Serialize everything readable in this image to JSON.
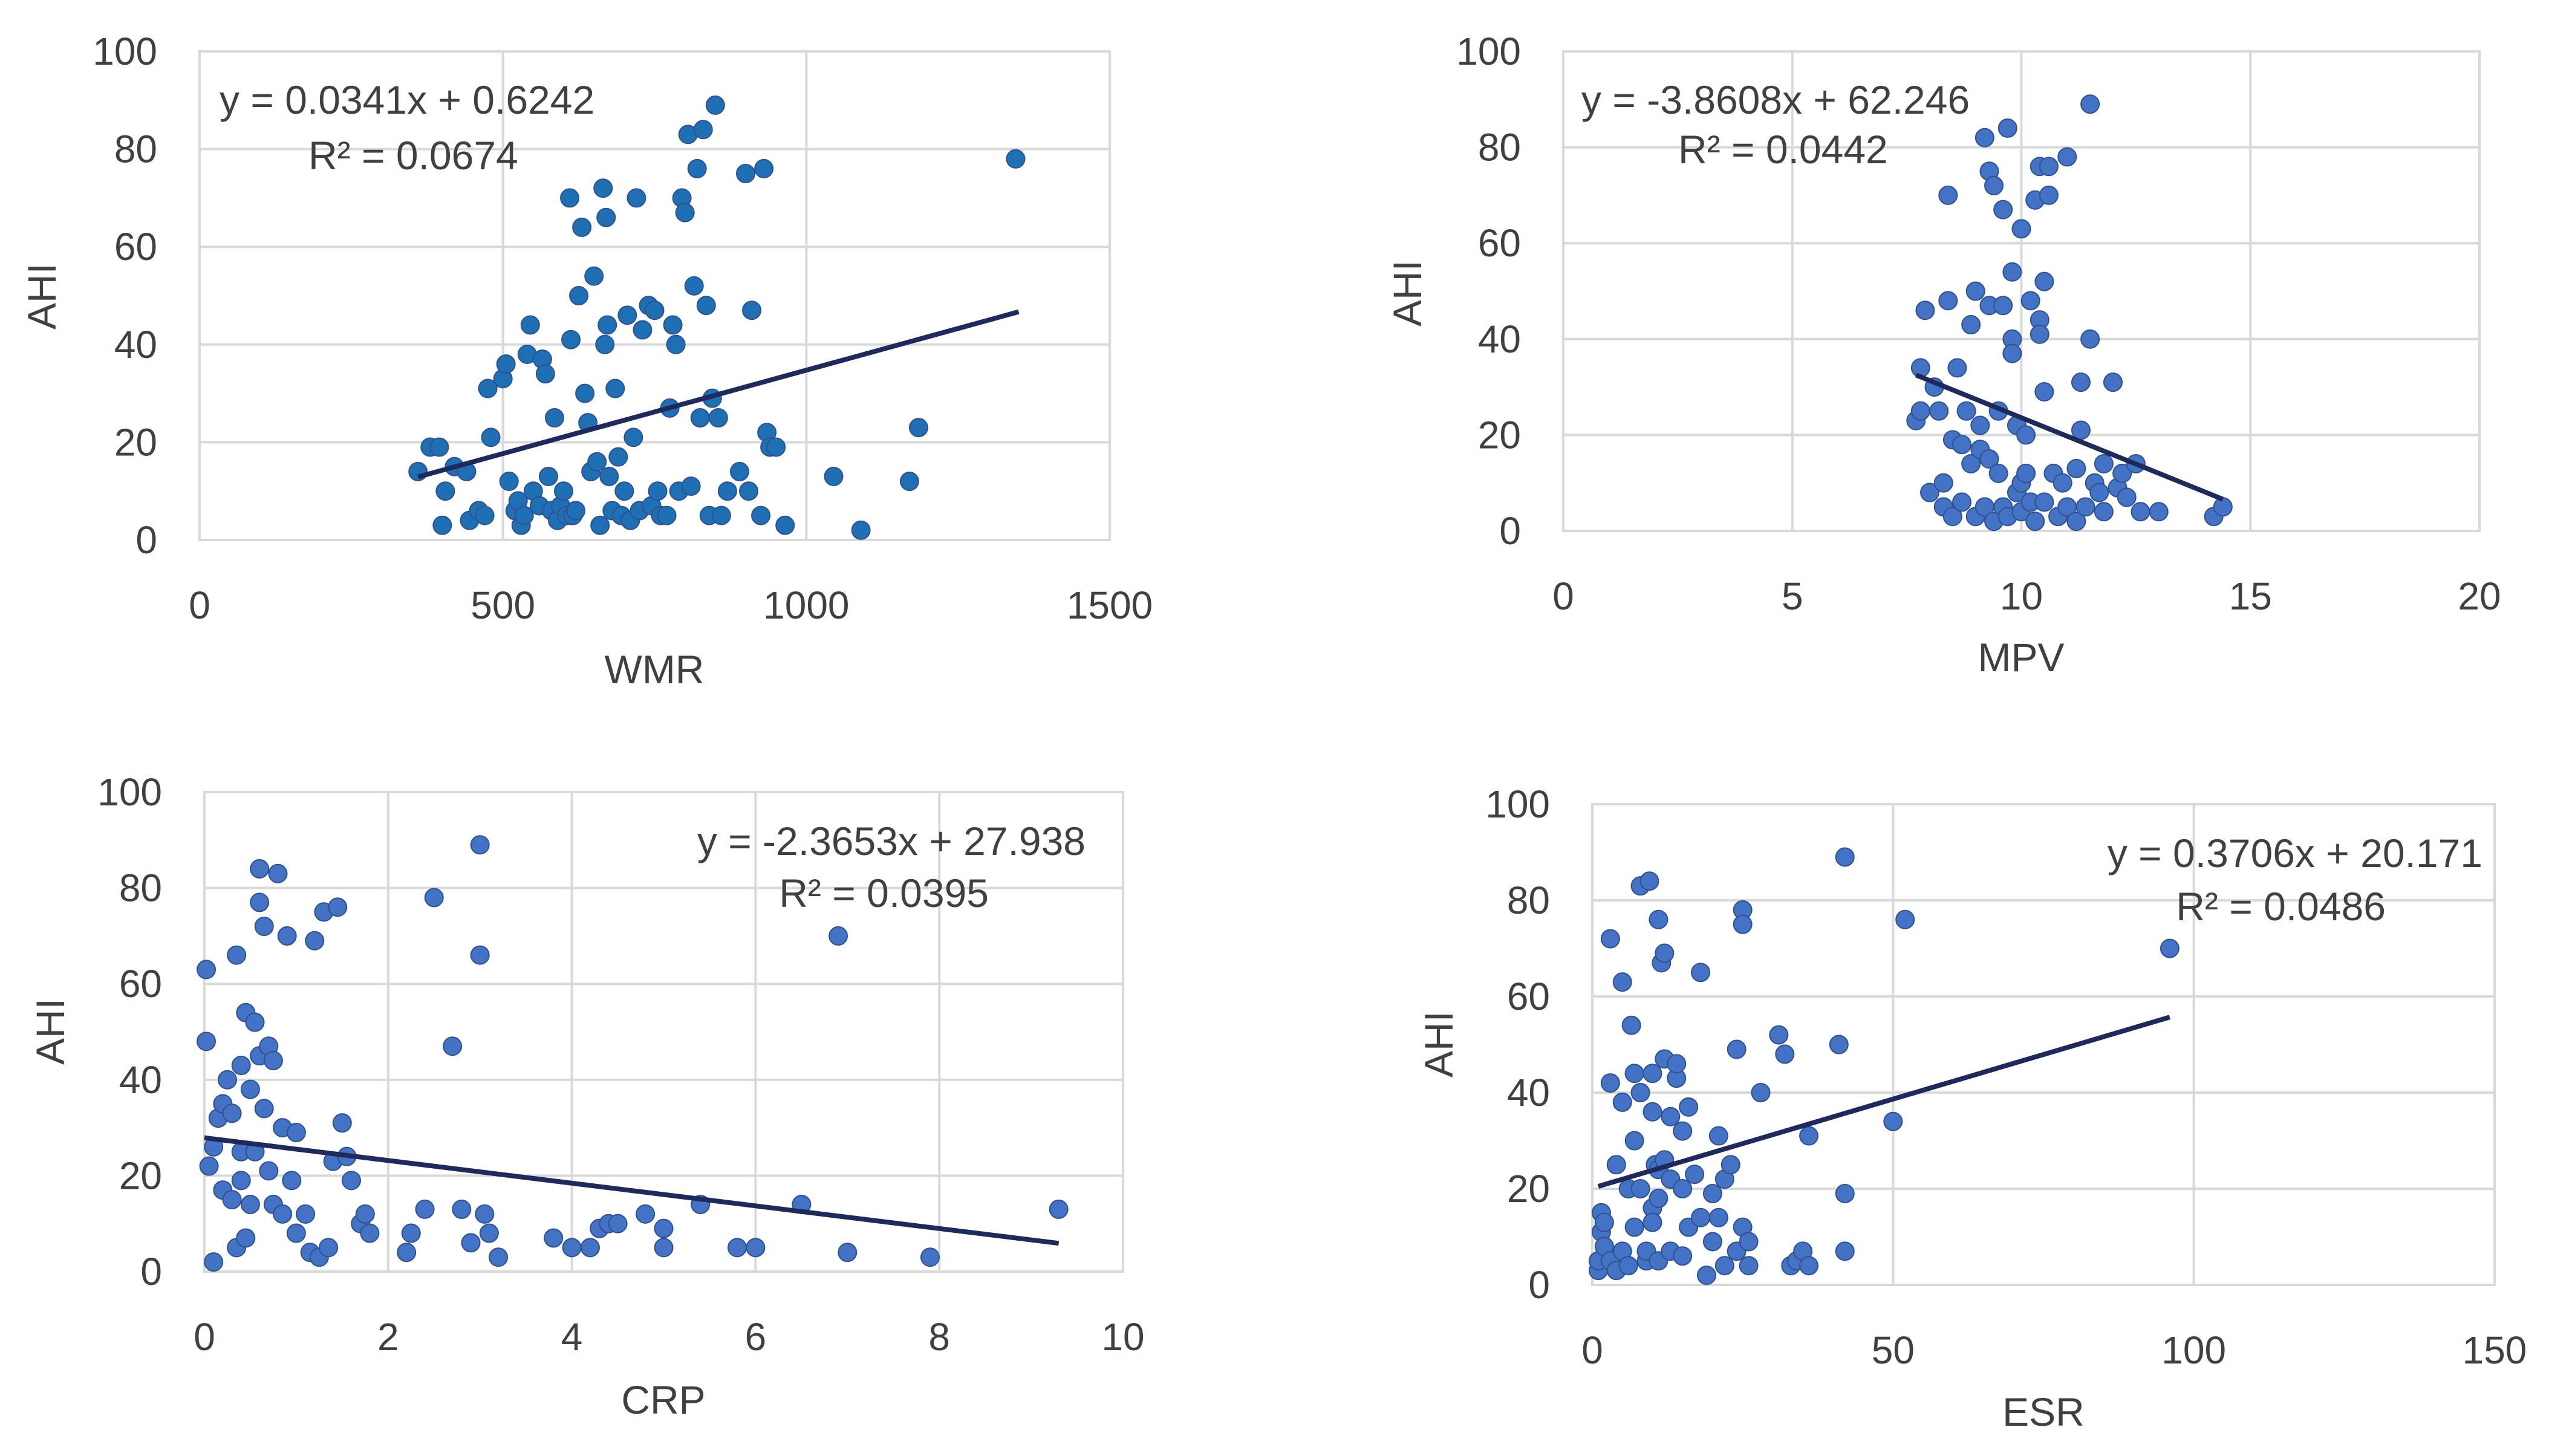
{
  "chart_data": [
    {
      "type": "scatter",
      "xlabel": "WMR",
      "ylabel": "AHI",
      "xlim": [
        0,
        1500
      ],
      "ylim": [
        0,
        100
      ],
      "xticks": [
        "0",
        "500",
        "1000",
        "1500"
      ],
      "yticks": [
        "0",
        "20",
        "40",
        "60",
        "80",
        "100"
      ],
      "grid": true,
      "point_color": "#1f6fb5",
      "equation": "y = 0.0341x + 0.6242",
      "r_squared": "R² = 0.0674",
      "trendline": {
        "x": [
          360,
          1350
        ],
        "y": [
          12.9,
          46.7
        ]
      },
      "points": [
        [
          360,
          14
        ],
        [
          380,
          19
        ],
        [
          395,
          19
        ],
        [
          400,
          3
        ],
        [
          405,
          10
        ],
        [
          420,
          15
        ],
        [
          440,
          14
        ],
        [
          445,
          4
        ],
        [
          460,
          6
        ],
        [
          470,
          5
        ],
        [
          475,
          31
        ],
        [
          480,
          21
        ],
        [
          500,
          33
        ],
        [
          505,
          36
        ],
        [
          510,
          12
        ],
        [
          520,
          6
        ],
        [
          525,
          8
        ],
        [
          530,
          3
        ],
        [
          535,
          5
        ],
        [
          540,
          38
        ],
        [
          545,
          44
        ],
        [
          550,
          10
        ],
        [
          560,
          7
        ],
        [
          565,
          37
        ],
        [
          570,
          34
        ],
        [
          575,
          13
        ],
        [
          580,
          6
        ],
        [
          585,
          25
        ],
        [
          590,
          4
        ],
        [
          595,
          7
        ],
        [
          600,
          10
        ],
        [
          605,
          5
        ],
        [
          610,
          70
        ],
        [
          612,
          41
        ],
        [
          615,
          5
        ],
        [
          620,
          6
        ],
        [
          625,
          50
        ],
        [
          630,
          64
        ],
        [
          635,
          30
        ],
        [
          640,
          24
        ],
        [
          645,
          14
        ],
        [
          650,
          54
        ],
        [
          655,
          16
        ],
        [
          660,
          3
        ],
        [
          665,
          72
        ],
        [
          668,
          40
        ],
        [
          670,
          66
        ],
        [
          672,
          44
        ],
        [
          675,
          13
        ],
        [
          680,
          6
        ],
        [
          685,
          31
        ],
        [
          690,
          17
        ],
        [
          695,
          5
        ],
        [
          700,
          10
        ],
        [
          705,
          46
        ],
        [
          710,
          4
        ],
        [
          715,
          21
        ],
        [
          720,
          70
        ],
        [
          725,
          6
        ],
        [
          730,
          43
        ],
        [
          740,
          48
        ],
        [
          745,
          7
        ],
        [
          750,
          47
        ],
        [
          755,
          10
        ],
        [
          760,
          5
        ],
        [
          770,
          5
        ],
        [
          775,
          27
        ],
        [
          780,
          44
        ],
        [
          785,
          40
        ],
        [
          790,
          10
        ],
        [
          795,
          70
        ],
        [
          800,
          67
        ],
        [
          805,
          83
        ],
        [
          810,
          11
        ],
        [
          815,
          52
        ],
        [
          820,
          76
        ],
        [
          825,
          25
        ],
        [
          830,
          84
        ],
        [
          835,
          48
        ],
        [
          840,
          5
        ],
        [
          845,
          29
        ],
        [
          850,
          89
        ],
        [
          855,
          25
        ],
        [
          860,
          5
        ],
        [
          870,
          10
        ],
        [
          890,
          14
        ],
        [
          900,
          75
        ],
        [
          905,
          10
        ],
        [
          910,
          47
        ],
        [
          925,
          5
        ],
        [
          930,
          76
        ],
        [
          935,
          22
        ],
        [
          940,
          19
        ],
        [
          950,
          19
        ],
        [
          965,
          3
        ],
        [
          1045,
          13
        ],
        [
          1090,
          2
        ],
        [
          1170,
          12
        ],
        [
          1185,
          23
        ],
        [
          1345,
          78
        ]
      ]
    },
    {
      "type": "scatter",
      "xlabel": "MPV",
      "ylabel": "AHI",
      "xlim": [
        0,
        20
      ],
      "ylim": [
        0,
        100
      ],
      "xticks": [
        "0",
        "5",
        "10",
        "15",
        "20"
      ],
      "yticks": [
        "0",
        "20",
        "40",
        "60",
        "80",
        "100"
      ],
      "grid": true,
      "point_color": "#4472c4",
      "equation": "y = -3.8608x + 62.246",
      "r_squared": "R² = 0.0442",
      "trendline": {
        "x": [
          7.7,
          14.4
        ],
        "y": [
          32.5,
          6.6
        ]
      },
      "points": [
        [
          7.7,
          23
        ],
        [
          7.8,
          25
        ],
        [
          7.8,
          34
        ],
        [
          7.9,
          46
        ],
        [
          8.0,
          8
        ],
        [
          8.1,
          30
        ],
        [
          8.2,
          25
        ],
        [
          8.3,
          10
        ],
        [
          8.3,
          5
        ],
        [
          8.4,
          70
        ],
        [
          8.4,
          48
        ],
        [
          8.5,
          3
        ],
        [
          8.5,
          19
        ],
        [
          8.6,
          34
        ],
        [
          8.7,
          6
        ],
        [
          8.7,
          18
        ],
        [
          8.8,
          25
        ],
        [
          8.9,
          43
        ],
        [
          8.9,
          14
        ],
        [
          9.0,
          3
        ],
        [
          9.0,
          50
        ],
        [
          9.1,
          22
        ],
        [
          9.1,
          17
        ],
        [
          9.2,
          82
        ],
        [
          9.2,
          5
        ],
        [
          9.3,
          75
        ],
        [
          9.3,
          15
        ],
        [
          9.3,
          47
        ],
        [
          9.4,
          2
        ],
        [
          9.4,
          72
        ],
        [
          9.5,
          25
        ],
        [
          9.5,
          12
        ],
        [
          9.6,
          67
        ],
        [
          9.6,
          47
        ],
        [
          9.6,
          5
        ],
        [
          9.7,
          84
        ],
        [
          9.7,
          3
        ],
        [
          9.8,
          54
        ],
        [
          9.8,
          40
        ],
        [
          9.8,
          37
        ],
        [
          9.9,
          22
        ],
        [
          9.9,
          8
        ],
        [
          10.0,
          10
        ],
        [
          10.0,
          4
        ],
        [
          10.0,
          63
        ],
        [
          10.1,
          20
        ],
        [
          10.1,
          12
        ],
        [
          10.2,
          48
        ],
        [
          10.2,
          6
        ],
        [
          10.3,
          69
        ],
        [
          10.3,
          2
        ],
        [
          10.4,
          44
        ],
        [
          10.4,
          41
        ],
        [
          10.4,
          76
        ],
        [
          10.5,
          29
        ],
        [
          10.5,
          52
        ],
        [
          10.5,
          6
        ],
        [
          10.6,
          70
        ],
        [
          10.6,
          76
        ],
        [
          10.7,
          12
        ],
        [
          10.8,
          3
        ],
        [
          10.9,
          10
        ],
        [
          11.0,
          78
        ],
        [
          11.0,
          5
        ],
        [
          11.2,
          2
        ],
        [
          11.2,
          13
        ],
        [
          11.3,
          21
        ],
        [
          11.3,
          31
        ],
        [
          11.4,
          5
        ],
        [
          11.5,
          89
        ],
        [
          11.5,
          40
        ],
        [
          11.6,
          10
        ],
        [
          11.7,
          8
        ],
        [
          11.8,
          14
        ],
        [
          11.8,
          4
        ],
        [
          12.0,
          31
        ],
        [
          12.1,
          9
        ],
        [
          12.2,
          12
        ],
        [
          12.3,
          7
        ],
        [
          12.5,
          14
        ],
        [
          12.6,
          4
        ],
        [
          13.0,
          4
        ],
        [
          14.2,
          3
        ],
        [
          14.4,
          5
        ]
      ]
    },
    {
      "type": "scatter",
      "xlabel": "CRP",
      "ylabel": "AHI",
      "xlim": [
        0,
        10
      ],
      "ylim": [
        0,
        100
      ],
      "xticks": [
        "0",
        "2",
        "4",
        "6",
        "8",
        "10"
      ],
      "yticks": [
        "0",
        "20",
        "40",
        "60",
        "80",
        "100"
      ],
      "grid": true,
      "point_color": "#4472c4",
      "equation": "y = -2.3653x + 27.938",
      "r_squared": "R² = 0.0395",
      "trendline": {
        "x": [
          0.0,
          9.3
        ],
        "y": [
          27.9,
          5.9
        ]
      },
      "points": [
        [
          0.02,
          63
        ],
        [
          0.02,
          48
        ],
        [
          0.05,
          22
        ],
        [
          0.1,
          2
        ],
        [
          0.1,
          26
        ],
        [
          0.15,
          32
        ],
        [
          0.2,
          35
        ],
        [
          0.2,
          17
        ],
        [
          0.25,
          40
        ],
        [
          0.3,
          15
        ],
        [
          0.3,
          33
        ],
        [
          0.35,
          66
        ],
        [
          0.35,
          5
        ],
        [
          0.4,
          43
        ],
        [
          0.4,
          25
        ],
        [
          0.4,
          19
        ],
        [
          0.45,
          54
        ],
        [
          0.45,
          7
        ],
        [
          0.5,
          38
        ],
        [
          0.5,
          14
        ],
        [
          0.55,
          25
        ],
        [
          0.55,
          52
        ],
        [
          0.6,
          84
        ],
        [
          0.6,
          77
        ],
        [
          0.6,
          45
        ],
        [
          0.65,
          72
        ],
        [
          0.65,
          34
        ],
        [
          0.7,
          21
        ],
        [
          0.7,
          47
        ],
        [
          0.75,
          14
        ],
        [
          0.75,
          44
        ],
        [
          0.8,
          83
        ],
        [
          0.85,
          12
        ],
        [
          0.85,
          30
        ],
        [
          0.9,
          70
        ],
        [
          0.95,
          19
        ],
        [
          1.0,
          29
        ],
        [
          1.0,
          8
        ],
        [
          1.1,
          12
        ],
        [
          1.15,
          4
        ],
        [
          1.2,
          69
        ],
        [
          1.25,
          3
        ],
        [
          1.3,
          75
        ],
        [
          1.35,
          5
        ],
        [
          1.4,
          23
        ],
        [
          1.45,
          76
        ],
        [
          1.5,
          31
        ],
        [
          1.55,
          24
        ],
        [
          1.6,
          19
        ],
        [
          1.7,
          10
        ],
        [
          1.75,
          12
        ],
        [
          1.8,
          8
        ],
        [
          2.2,
          4
        ],
        [
          2.25,
          8
        ],
        [
          2.4,
          13
        ],
        [
          2.5,
          78
        ],
        [
          2.7,
          47
        ],
        [
          2.8,
          13
        ],
        [
          2.9,
          6
        ],
        [
          3.0,
          89
        ],
        [
          3.0,
          66
        ],
        [
          3.05,
          12
        ],
        [
          3.1,
          8
        ],
        [
          3.2,
          3
        ],
        [
          3.8,
          7
        ],
        [
          4.0,
          5
        ],
        [
          4.2,
          5
        ],
        [
          4.3,
          9
        ],
        [
          4.4,
          10
        ],
        [
          4.5,
          10
        ],
        [
          4.8,
          12
        ],
        [
          5.0,
          9
        ],
        [
          5.0,
          5
        ],
        [
          5.4,
          14
        ],
        [
          5.8,
          5
        ],
        [
          6.0,
          5
        ],
        [
          6.5,
          14
        ],
        [
          6.9,
          70
        ],
        [
          7.0,
          4
        ],
        [
          7.9,
          3
        ],
        [
          9.3,
          13
        ]
      ]
    },
    {
      "type": "scatter",
      "xlabel": "ESR",
      "ylabel": "AHI",
      "xlim": [
        0,
        150
      ],
      "ylim": [
        0,
        100
      ],
      "xticks": [
        "0",
        "50",
        "100",
        "150"
      ],
      "yticks": [
        "0",
        "20",
        "40",
        "60",
        "80",
        "100"
      ],
      "grid": true,
      "point_color": "#4472c4",
      "equation": "y = 0.3706x + 20.171",
      "r_squared": "R² = 0.0486",
      "trendline": {
        "x": [
          1.0,
          96.0
        ],
        "y": [
          20.5,
          55.7
        ]
      },
      "points": [
        [
          1,
          3
        ],
        [
          1,
          5
        ],
        [
          1.5,
          15
        ],
        [
          1.5,
          11
        ],
        [
          2,
          8
        ],
        [
          2,
          13
        ],
        [
          3,
          72
        ],
        [
          3,
          42
        ],
        [
          3,
          5
        ],
        [
          4,
          3
        ],
        [
          4,
          25
        ],
        [
          5,
          38
        ],
        [
          5,
          63
        ],
        [
          5,
          7
        ],
        [
          6,
          4
        ],
        [
          6,
          20
        ],
        [
          6.5,
          54
        ],
        [
          7,
          12
        ],
        [
          7,
          30
        ],
        [
          7,
          44
        ],
        [
          8,
          83
        ],
        [
          8,
          40
        ],
        [
          8,
          20
        ],
        [
          9,
          5
        ],
        [
          9,
          7
        ],
        [
          9.5,
          84
        ],
        [
          10,
          16
        ],
        [
          10,
          36
        ],
        [
          10,
          13
        ],
        [
          10,
          44
        ],
        [
          10.5,
          25
        ],
        [
          11,
          76
        ],
        [
          11,
          5
        ],
        [
          11,
          24
        ],
        [
          11,
          18
        ],
        [
          11.5,
          67
        ],
        [
          12,
          69
        ],
        [
          12,
          26
        ],
        [
          12,
          47
        ],
        [
          13,
          35
        ],
        [
          13,
          22
        ],
        [
          13,
          7
        ],
        [
          14,
          43
        ],
        [
          14,
          46
        ],
        [
          15,
          32
        ],
        [
          15,
          20
        ],
        [
          15,
          6
        ],
        [
          16,
          37
        ],
        [
          16,
          12
        ],
        [
          17,
          23
        ],
        [
          18,
          65
        ],
        [
          18,
          14
        ],
        [
          19,
          2
        ],
        [
          20,
          9
        ],
        [
          20,
          19
        ],
        [
          21,
          14
        ],
        [
          21,
          31
        ],
        [
          22,
          22
        ],
        [
          22,
          4
        ],
        [
          23,
          25
        ],
        [
          24,
          49
        ],
        [
          24,
          7
        ],
        [
          25,
          78
        ],
        [
          25,
          75
        ],
        [
          25,
          12
        ],
        [
          26,
          9
        ],
        [
          26,
          4
        ],
        [
          28,
          40
        ],
        [
          31,
          52
        ],
        [
          32,
          48
        ],
        [
          33,
          4
        ],
        [
          34,
          5
        ],
        [
          35,
          7
        ],
        [
          36,
          31
        ],
        [
          36,
          4
        ],
        [
          41,
          50
        ],
        [
          42,
          7
        ],
        [
          42,
          19
        ],
        [
          42,
          89
        ],
        [
          50,
          34
        ],
        [
          52,
          76
        ],
        [
          96,
          70
        ]
      ]
    }
  ]
}
